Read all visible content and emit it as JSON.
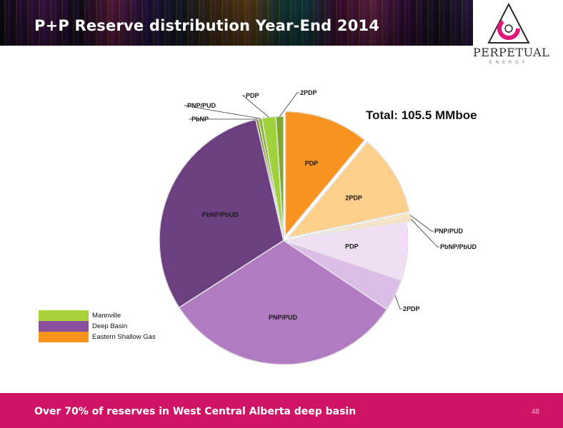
{
  "slide": {
    "title": "P+P Reserve distribution Year-End 2014",
    "footer_text": "Over 70% of reserves in West Central Alberta deep basin",
    "page_number": "48"
  },
  "logo": {
    "name": "PERPETUAL",
    "subtitle": "ENERGY",
    "colors": [
      "#e0157a",
      "#333333"
    ]
  },
  "chart_data": {
    "type": "pie",
    "annotation": "Total: 105.5 MMboe",
    "total": 105.5,
    "unit": "MMboe",
    "legend_position": "bottom-left",
    "legend": [
      {
        "name": "Mannville",
        "color": "#a9d13a"
      },
      {
        "name": "Deep Basin",
        "color": "#8a4f9e"
      },
      {
        "name": "Eastern Shallow Gas",
        "color": "#f7941d"
      }
    ],
    "slices": [
      {
        "label": "PDP",
        "group": "Eastern Shallow Gas",
        "percent": 11.0,
        "color": "#f7931e"
      },
      {
        "label": "2PDP",
        "group": "Eastern Shallow Gas",
        "percent": 10.6,
        "color": "#fcd08a"
      },
      {
        "label": "PNP/PUD",
        "group": "Eastern Shallow Gas",
        "percent": 0.6,
        "color": "#fde3bd"
      },
      {
        "label": "PbNP/PbUD",
        "group": "Eastern Shallow Gas",
        "percent": 0.4,
        "color": "#fcdcb0"
      },
      {
        "label": "PDP",
        "group": "Deep Basin",
        "percent": 7.6,
        "color": "#f0def3"
      },
      {
        "label": "2PDP",
        "group": "Deep Basin",
        "percent": 4.2,
        "color": "#dcbde6"
      },
      {
        "label": "PNP/PUD",
        "group": "Deep Basin",
        "percent": 31.5,
        "color": "#b17bc1"
      },
      {
        "label": "PbNP/PbUD",
        "group": "Deep Basin",
        "percent": 30.5,
        "color": "#6c3f80"
      },
      {
        "label": "PbNP",
        "group": "Mannville",
        "percent": 0.35,
        "color": "#6f8a22"
      },
      {
        "label": "PNP/PUD",
        "group": "Mannville",
        "percent": 0.45,
        "color": "#8fb02c"
      },
      {
        "label": "PDP",
        "group": "Mannville",
        "percent": 1.8,
        "color": "#9fd13b"
      },
      {
        "label": "2PDP",
        "group": "Mannville",
        "percent": 1.0,
        "color": "#7fa82a"
      }
    ]
  }
}
